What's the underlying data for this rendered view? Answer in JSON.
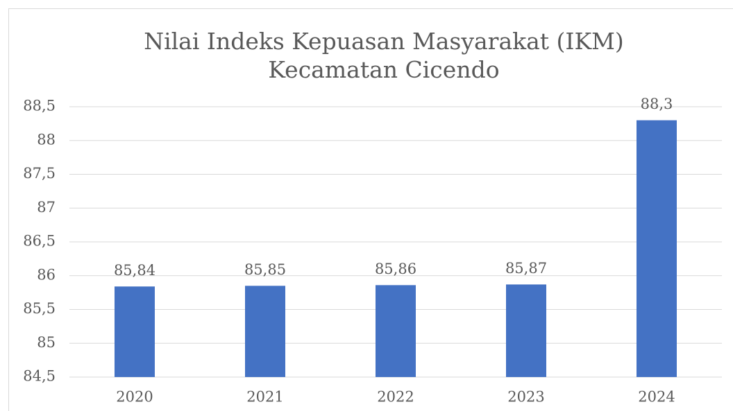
{
  "chart_data": {
    "type": "bar",
    "title": [
      "Nilai Indeks Kepuasan Masyarakat (IKM)",
      "Kecamatan Cicendo"
    ],
    "categories": [
      "2020",
      "2021",
      "2022",
      "2023",
      "2024"
    ],
    "values": [
      85.84,
      85.85,
      85.86,
      85.87,
      88.3
    ],
    "value_labels": [
      "85,84",
      "85,85",
      "85,86",
      "85,87",
      "88,3"
    ],
    "color": "#4472c4",
    "ylim": [
      84.5,
      88.5
    ],
    "yticks": [
      {
        "value": 84.5,
        "label": "84,5"
      },
      85,
      {
        "value": 85.5,
        "label": "85,5"
      },
      86,
      {
        "value": 86.5,
        "label": "86,5"
      },
      87,
      {
        "value": 87.5,
        "label": "87,5"
      },
      88,
      {
        "value": 88.5,
        "label": "88,5"
      }
    ],
    "grid": true
  }
}
